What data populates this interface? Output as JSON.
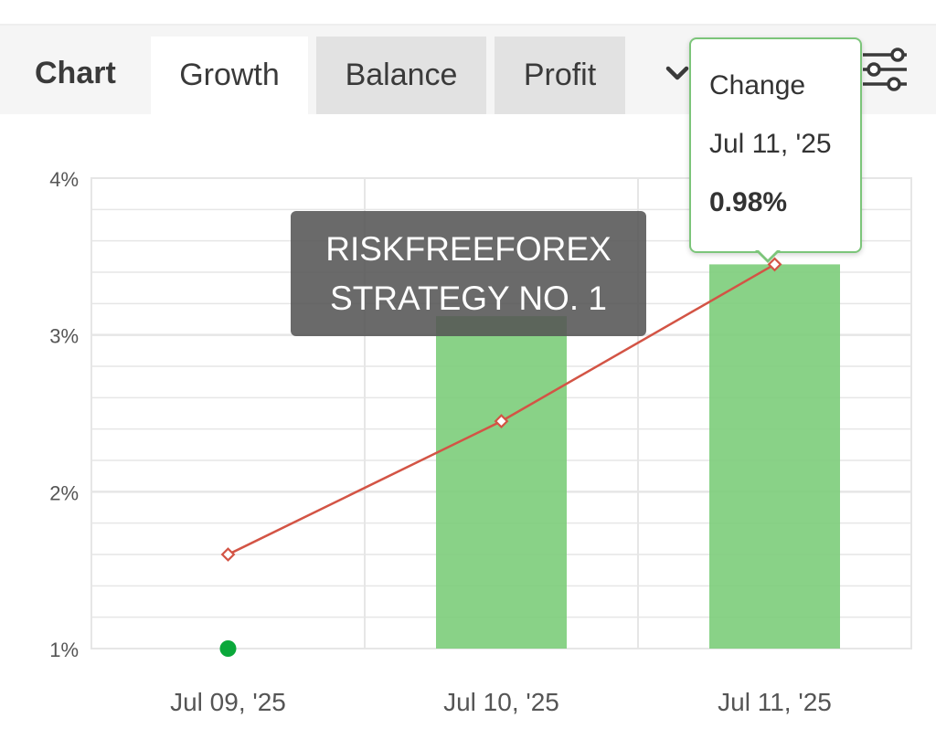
{
  "header": {
    "title": "Chart",
    "tabs": [
      {
        "label": "Growth",
        "active": true
      },
      {
        "label": "Balance",
        "active": false
      },
      {
        "label": "Profit",
        "active": false
      }
    ],
    "dropdown_icon": "chevron-down-icon",
    "filter_icon": "sliders-icon"
  },
  "watermark": {
    "line1": "RISKFREEFOREX",
    "line2": "STRATEGY NO. 1"
  },
  "tooltip": {
    "label": "Change",
    "date": "Jul 11, '25",
    "value": "0.98%"
  },
  "colors": {
    "bar": "#7ccd7a",
    "line": "#d35445",
    "marker_start": "#0aa83a",
    "tooltip_border": "#7cc57a",
    "grid": "#e6e6e6"
  },
  "chart_data": {
    "type": "bar",
    "categories": [
      "Jul 09, '25",
      "Jul 10, '25",
      "Jul 11, '25"
    ],
    "series": [
      {
        "type": "bar",
        "values": [
          null,
          3.12,
          3.45
        ]
      },
      {
        "type": "line",
        "values": [
          1.6,
          2.45,
          3.45
        ]
      }
    ],
    "start_point": {
      "x": "Jul 09, '25",
      "y": 1.0
    },
    "ylim": [
      1,
      4
    ],
    "yticks": [
      "1%",
      "2%",
      "3%",
      "4%"
    ],
    "grid": true
  }
}
